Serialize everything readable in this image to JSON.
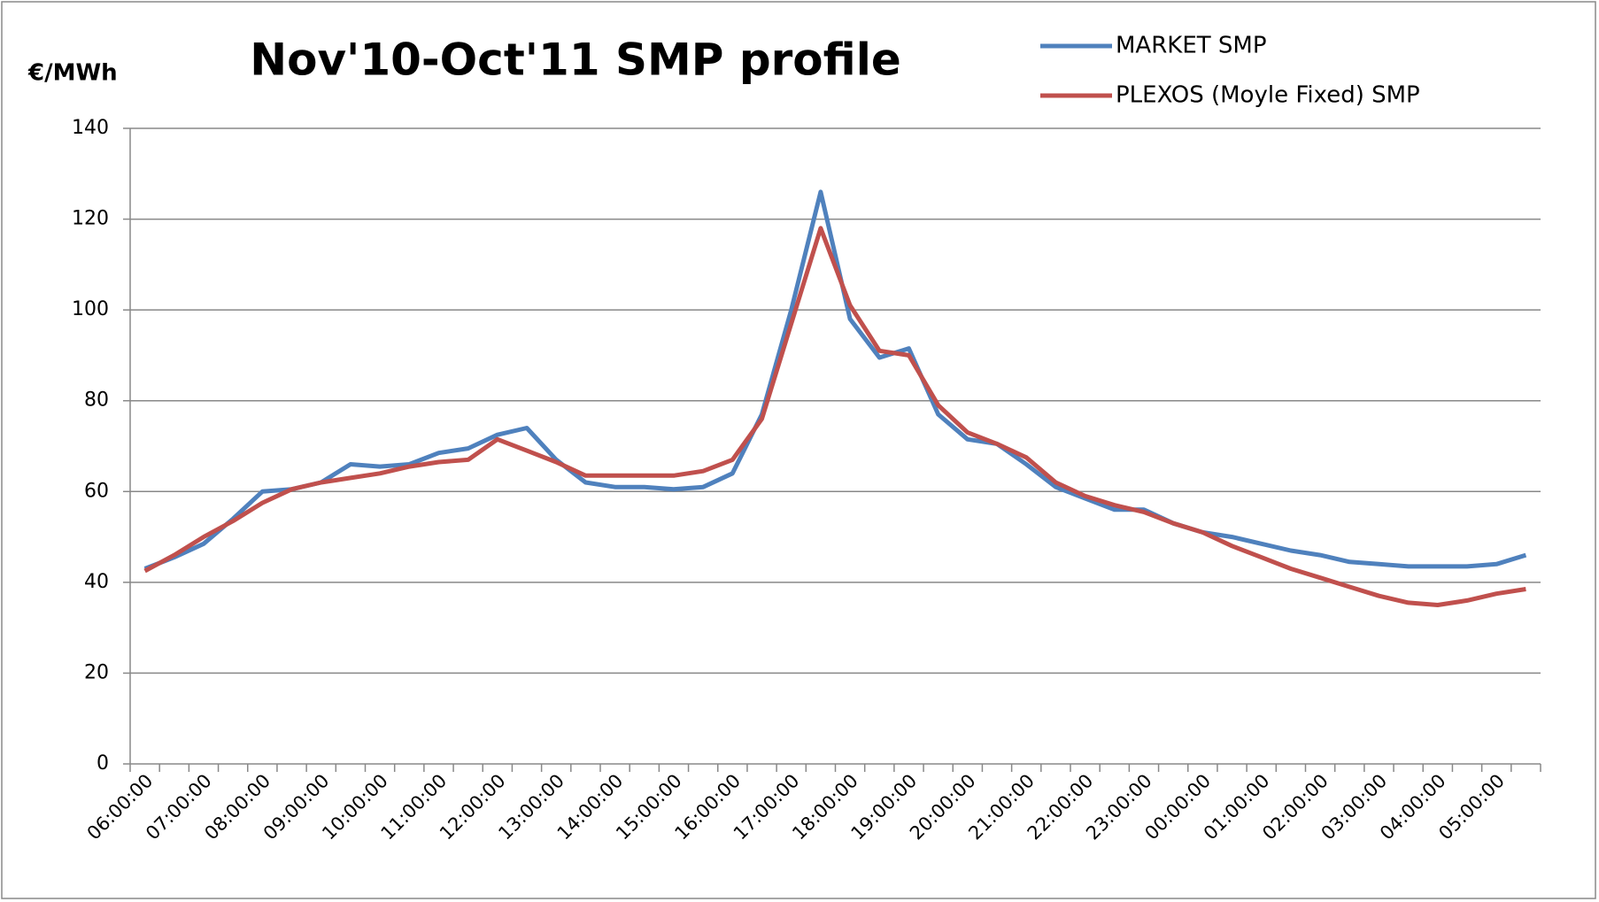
{
  "chart_data": {
    "type": "line",
    "title": "Nov'10-Oct'11  SMP profile",
    "y_label": "€/MWh",
    "categories": [
      "06:00:00",
      null,
      "07:00:00",
      null,
      "08:00:00",
      null,
      "09:00:00",
      null,
      "10:00:00",
      null,
      "11:00:00",
      null,
      "12:00:00",
      null,
      "13:00:00",
      null,
      "14:00:00",
      null,
      "15:00:00",
      null,
      "16:00:00",
      null,
      "17:00:00",
      null,
      "18:00:00",
      null,
      "19:00:00",
      null,
      "20:00:00",
      null,
      "21:00:00",
      null,
      "22:00:00",
      null,
      "23:00:00",
      null,
      "00:00:00",
      null,
      "01:00:00",
      null,
      "02:00:00",
      null,
      "03:00:00",
      null,
      "04:00:00",
      null,
      "05:00:00",
      null
    ],
    "series": [
      {
        "name": "MARKET SMP",
        "color": "#4f81bd",
        "values": [
          43,
          45.5,
          48.5,
          54,
          60,
          60.5,
          62,
          66,
          65.5,
          66,
          68.5,
          69.5,
          72.5,
          74,
          67,
          62,
          61,
          61,
          60.5,
          61,
          64,
          77,
          100,
          126,
          98,
          89.5,
          91.5,
          77,
          71.5,
          70.5,
          66,
          61,
          58.5,
          56,
          56,
          53,
          51,
          50,
          48.5,
          47,
          46,
          44.5,
          44,
          43.5,
          43.5,
          43.5,
          44,
          46
        ]
      },
      {
        "name": "PLEXOS (Moyle Fixed) SMP",
        "color": "#c0504d",
        "values": [
          42.5,
          46,
          50,
          53.5,
          57.5,
          60.5,
          62,
          63,
          64,
          65.5,
          66.5,
          67,
          71.5,
          69,
          66.5,
          63.5,
          63.5,
          63.5,
          63.5,
          64.5,
          67,
          76,
          97,
          118,
          101,
          91,
          90,
          79,
          73,
          70.5,
          67.5,
          62,
          59,
          57,
          55.5,
          53,
          51,
          48,
          45.5,
          43,
          41,
          39,
          37,
          35.5,
          35,
          36,
          37.5,
          38.5
        ]
      }
    ],
    "ylim": [
      0,
      140
    ],
    "yticks": [
      0,
      20,
      40,
      60,
      80,
      100,
      120,
      140
    ],
    "grid": true,
    "legend": "top-right"
  }
}
